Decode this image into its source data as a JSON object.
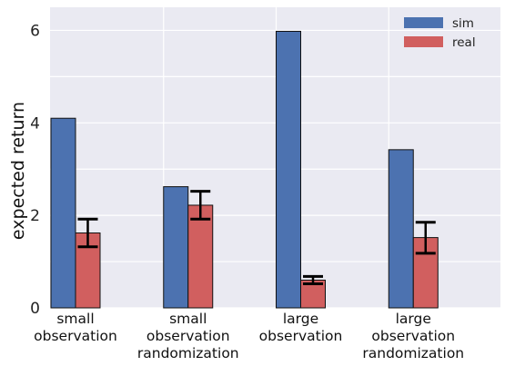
{
  "chart_data": {
    "type": "bar",
    "title": "",
    "xlabel": "",
    "ylabel": "expected return",
    "ylim": [
      0,
      6.5
    ],
    "yticks": [
      0,
      2,
      4,
      6
    ],
    "grid": true,
    "legend_position": "top-right",
    "categories": [
      [
        "small",
        "observation"
      ],
      [
        "small",
        "observation",
        "randomization"
      ],
      [
        "large",
        "observation"
      ],
      [
        "large",
        "observation",
        "randomization"
      ]
    ],
    "series": [
      {
        "name": "sim",
        "color": "#4c72b0",
        "values": [
          4.1,
          2.62,
          5.98,
          3.42
        ]
      },
      {
        "name": "real",
        "color": "#d15f5f",
        "values": [
          1.62,
          2.22,
          0.6,
          1.52
        ],
        "error_low": [
          1.32,
          1.92,
          0.52,
          1.18
        ],
        "error_high": [
          1.92,
          2.52,
          0.68,
          1.85
        ]
      }
    ]
  }
}
